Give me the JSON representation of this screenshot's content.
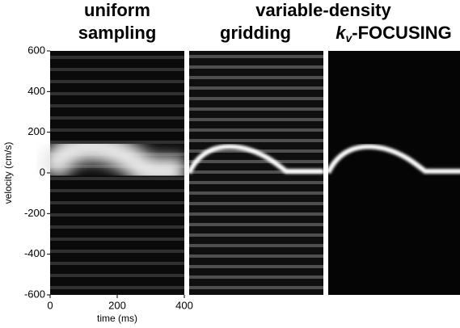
{
  "figure": {
    "titles": {
      "uniform_1": "uniform",
      "uniform_2": "sampling",
      "group": "variable-density",
      "gridding": "gridding",
      "focusing": [
        "k",
        "v",
        "-FOCUSING"
      ]
    },
    "y_axis": {
      "label": "velocity (cm/s)",
      "lim": [
        -600,
        600
      ],
      "ticks": [
        -600,
        -400,
        -200,
        0,
        200,
        400,
        600
      ]
    },
    "x_axis": {
      "label": "time (ms)",
      "lim": [
        0,
        400
      ],
      "ticks": [
        0,
        200,
        400
      ]
    }
  }
}
